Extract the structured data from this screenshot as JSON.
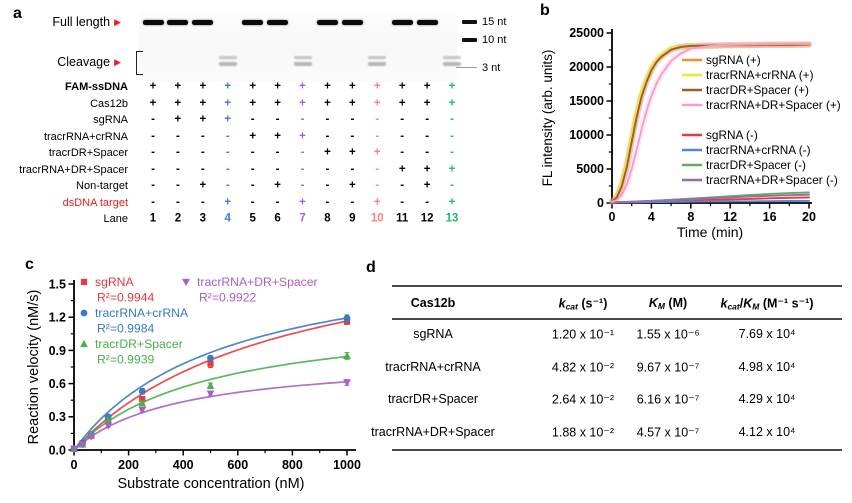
{
  "panel_a": {
    "letter": "a",
    "gel": {
      "full_length_label": "Full length",
      "cleavage_label": "Cleavage",
      "full_length_lanes": [
        1,
        2,
        3,
        5,
        6,
        8,
        9,
        11,
        12
      ],
      "cleavage_lanes": [
        4,
        7,
        10,
        13
      ],
      "size_markers": [
        "15 nt",
        "10 nt",
        "3 nt"
      ]
    },
    "rows": [
      {
        "label": "FAM-ssDNA",
        "bold": true,
        "values": [
          "+",
          "+",
          "+",
          "+",
          "+",
          "+",
          "+",
          "+",
          "+",
          "+",
          "+",
          "+",
          "+"
        ]
      },
      {
        "label": "Cas12b",
        "values": [
          "+",
          "+",
          "+",
          "+",
          "+",
          "+",
          "+",
          "+",
          "+",
          "+",
          "+",
          "+",
          "+"
        ]
      },
      {
        "label": "sgRNA",
        "values": [
          "-",
          "+",
          "+",
          "+",
          "-",
          "-",
          "-",
          "-",
          "-",
          "-",
          "-",
          "-",
          "-"
        ]
      },
      {
        "label": "tracrRNA+crRNA",
        "values": [
          "-",
          "-",
          "-",
          "-",
          "+",
          "+",
          "+",
          "-",
          "-",
          "-",
          "-",
          "-",
          "-"
        ]
      },
      {
        "label": "tracrDR+Spacer",
        "values": [
          "-",
          "-",
          "-",
          "-",
          "-",
          "-",
          "-",
          "+",
          "+",
          "+",
          "-",
          "-",
          "-"
        ]
      },
      {
        "label": "tracrRNA+DR+Spacer",
        "values": [
          "-",
          "-",
          "-",
          "-",
          "-",
          "-",
          "-",
          "-",
          "-",
          "-",
          "+",
          "+",
          "+"
        ]
      },
      {
        "label": "Non-target",
        "values": [
          "-",
          "-",
          "+",
          "-",
          "-",
          "+",
          "-",
          "-",
          "+",
          "-",
          "-",
          "+",
          "-"
        ]
      },
      {
        "label": "dsDNA target",
        "red": true,
        "values": [
          "-",
          "-",
          "-",
          "+",
          "-",
          "-",
          "+",
          "-",
          "-",
          "+",
          "-",
          "-",
          "+"
        ]
      }
    ],
    "lane_label": "Lane",
    "lane_numbers": [
      "1",
      "2",
      "3",
      "4",
      "5",
      "6",
      "7",
      "8",
      "9",
      "10",
      "11",
      "12",
      "13"
    ],
    "lane_colors": {
      "4": "#3e7be0",
      "7": "#b05af0",
      "10": "#f9827a",
      "13": "#1ec163"
    }
  },
  "panel_b": {
    "letter": "b"
  },
  "panel_c": {
    "letter": "c"
  },
  "panel_d": {
    "letter": "d",
    "table": {
      "headers": [
        "Cas12b",
        "*k~cat~* (s⁻¹)",
        "*K~M~* (M)",
        "*k~cat~*/*K~M~* (M⁻¹ s⁻¹)"
      ],
      "rows": [
        [
          "sgRNA",
          "1.20 x 10⁻¹",
          "1.55 x 10⁻⁶",
          "7.69 x 10⁴"
        ],
        [
          "tracrRNA+crRNA",
          "4.82 x 10⁻²",
          "9.67 x 10⁻⁷",
          "4.98 x 10⁴"
        ],
        [
          "tracrDR+Spacer",
          "2.64 x 10⁻²",
          "6.16 x 10⁻⁷",
          "4.29 x 10⁴"
        ],
        [
          "tracrRNA+DR+Spacer",
          "1.88 x 10⁻²",
          "4.57 x 10⁻⁷",
          "4.12 x 10⁴"
        ]
      ]
    }
  },
  "chart_data": [
    {
      "id": "b",
      "type": "line",
      "xlabel": "Time (min)",
      "ylabel": "FL intensity (arb. units)",
      "xlim": [
        0,
        20
      ],
      "ylim": [
        0,
        25000
      ],
      "xticks": [
        0,
        4,
        8,
        12,
        16,
        20
      ],
      "yticks": [
        0,
        5000,
        10000,
        15000,
        20000,
        25000
      ],
      "grid": false,
      "legend_position": "inside-right",
      "x": [
        0,
        0.5,
        1,
        1.5,
        2,
        2.5,
        3,
        3.5,
        4,
        4.5,
        5,
        6,
        7,
        8,
        10,
        12,
        14,
        16,
        18,
        20
      ],
      "series": [
        {
          "name": "sgRNA (+)",
          "color": "#f28e2b",
          "band": true,
          "values": [
            200,
            900,
            2600,
            5500,
            9200,
            12800,
            15800,
            18000,
            19600,
            20800,
            21600,
            22600,
            23000,
            23100,
            23150,
            23200,
            23200,
            23250,
            23250,
            23300
          ]
        },
        {
          "name": "tracrRNA+crRNA (+)",
          "color": "#f2e33a",
          "band": true,
          "values": [
            250,
            1100,
            3100,
            6300,
            10100,
            13600,
            16400,
            18500,
            20000,
            21100,
            21900,
            22750,
            23050,
            23100,
            23150,
            23200,
            23200,
            23250,
            23250,
            23300
          ]
        },
        {
          "name": "tracrDR+Spacer (+)",
          "color": "#a05a2c",
          "band": true,
          "values": [
            200,
            850,
            2500,
            5300,
            9000,
            12600,
            15600,
            17800,
            19500,
            20700,
            21500,
            22550,
            22950,
            23100,
            23150,
            23200,
            23200,
            23250,
            23250,
            23300
          ]
        },
        {
          "name": "tracrRNA+DR+Spacer (+)",
          "color": "#fb9bcb",
          "band": true,
          "values": [
            150,
            450,
            1200,
            2700,
            5000,
            7800,
            10800,
            13500,
            15700,
            17500,
            18900,
            20900,
            22000,
            22700,
            23100,
            23250,
            23300,
            23350,
            23400,
            23400
          ]
        },
        {
          "name": "sgRNA (-)",
          "color": "#e8393e",
          "band": false,
          "values": [
            100,
            110,
            125,
            140,
            155,
            170,
            185,
            200,
            215,
            230,
            250,
            290,
            330,
            370,
            450,
            530,
            610,
            690,
            760,
            830
          ]
        },
        {
          "name": "tracrRNA+crRNA (-)",
          "color": "#5588c7",
          "band": false,
          "values": [
            80,
            85,
            90,
            95,
            100,
            108,
            115,
            122,
            130,
            138,
            145,
            160,
            172,
            185,
            210,
            232,
            252,
            272,
            292,
            310
          ]
        },
        {
          "name": "tracrDR+Spacer (-)",
          "color": "#5fb254",
          "band": false,
          "values": [
            100,
            120,
            145,
            170,
            200,
            230,
            260,
            295,
            330,
            365,
            400,
            480,
            560,
            645,
            820,
            1000,
            1180,
            1340,
            1460,
            1550
          ]
        },
        {
          "name": "tracrRNA+DR+Spacer (-)",
          "color": "#9c68b4",
          "band": false,
          "values": [
            90,
            110,
            130,
            155,
            180,
            210,
            240,
            270,
            300,
            330,
            365,
            430,
            495,
            560,
            700,
            830,
            950,
            1060,
            1150,
            1220
          ]
        }
      ]
    },
    {
      "id": "c",
      "type": "scatter",
      "xlabel": "Substrate concentration (nM)",
      "ylabel": "Reaction velocity (nM/s)",
      "xlim": [
        0,
        1100
      ],
      "ylim": [
        0,
        1.5
      ],
      "xticks": [
        0,
        200,
        400,
        600,
        800,
        1000
      ],
      "yticks": [
        0.0,
        0.3,
        0.6,
        0.9,
        1.2,
        1.5
      ],
      "grid": false,
      "series": [
        {
          "name": "sgRNA",
          "r2": "R²=0.9944",
          "marker": "square",
          "color": "#e8393e",
          "x": [
            0,
            31,
            63,
            125,
            250,
            500,
            1000
          ],
          "y": [
            0.01,
            0.06,
            0.13,
            0.28,
            0.46,
            0.78,
            1.16
          ],
          "err": [
            0.005,
            0.008,
            0.012,
            0.015,
            0.02,
            0.035,
            0.025
          ],
          "fit": {
            "vmax": 2.05,
            "km": 760
          }
        },
        {
          "name": "tracrRNA+crRNA",
          "r2": "R²=0.9984",
          "marker": "circle",
          "color": "#3b7ac2",
          "x": [
            0,
            31,
            63,
            125,
            250,
            500,
            1000
          ],
          "y": [
            0.01,
            0.06,
            0.14,
            0.3,
            0.53,
            0.83,
            1.19
          ],
          "err": [
            0.005,
            0.008,
            0.012,
            0.015,
            0.025,
            0.02,
            0.03
          ],
          "fit": {
            "vmax": 1.85,
            "km": 550
          }
        },
        {
          "name": "tracrDR+Spacer",
          "r2": "R²=0.9939",
          "marker": "triangle-up",
          "color": "#4bae4f",
          "x": [
            0,
            31,
            63,
            125,
            250,
            500,
            1000
          ],
          "y": [
            0.01,
            0.05,
            0.14,
            0.27,
            0.42,
            0.58,
            0.85
          ],
          "err": [
            0.005,
            0.008,
            0.012,
            0.015,
            0.02,
            0.025,
            0.03
          ],
          "fit": {
            "vmax": 1.25,
            "km": 480
          }
        },
        {
          "name": "tracrRNA+DR+Spacer",
          "r2": "R²=0.9922",
          "marker": "triangle-down",
          "color": "#a95fc4",
          "x": [
            0,
            31,
            63,
            125,
            250,
            500,
            1000
          ],
          "y": [
            0.01,
            0.05,
            0.12,
            0.22,
            0.36,
            0.51,
            0.61
          ],
          "err": [
            0.005,
            0.008,
            0.012,
            0.015,
            0.018,
            0.02,
            0.025
          ],
          "fit": {
            "vmax": 0.85,
            "km": 380
          }
        }
      ]
    }
  ]
}
